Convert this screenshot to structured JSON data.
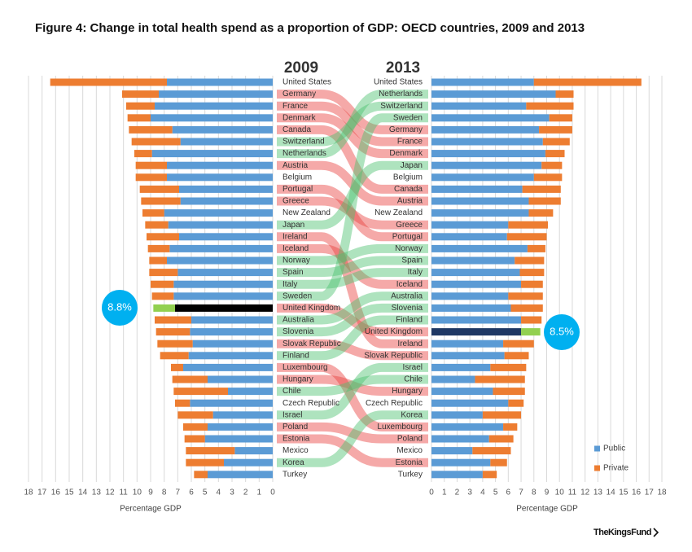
{
  "title": "Figure 4: Change in total health spend as a proportion of GDP: OECD countries, 2009 and 2013",
  "footer": "TheKingsFund",
  "chart_data": [
    {
      "type": "bar",
      "orientation": "horizontal",
      "stacked": true,
      "title": "2009",
      "xlabel": "Percentage GDP",
      "categories": [
        "United States",
        "Germany",
        "France",
        "Denmark",
        "Canada",
        "Switzerland",
        "Netherlands",
        "Austria",
        "Belgium",
        "Portugal",
        "Greece",
        "New Zealand",
        "Japan",
        "Ireland",
        "Iceland",
        "Norway",
        "Spain",
        "Italy",
        "Sweden",
        "United Kingdom",
        "Australia",
        "Slovenia",
        "Slovak Republic",
        "Finland",
        "Luxembourg",
        "Hungary",
        "Chile",
        "Czech Republic",
        "Israel",
        "Poland",
        "Estonia",
        "Mexico",
        "Korea",
        "Turkey"
      ],
      "series": [
        {
          "name": "Public",
          "color": "#5b9bd5",
          "values": [
            7.8,
            8.4,
            8.7,
            9.0,
            7.4,
            6.8,
            8.9,
            7.8,
            7.8,
            6.9,
            6.8,
            8.0,
            7.7,
            6.9,
            7.6,
            7.8,
            7.0,
            7.3,
            7.3,
            7.2,
            6.0,
            6.1,
            5.9,
            6.2,
            6.6,
            4.8,
            3.3,
            6.1,
            4.4,
            4.8,
            5.0,
            2.8,
            3.6,
            4.8
          ]
        },
        {
          "name": "Private",
          "color": "#ed7d31",
          "values": [
            8.6,
            2.7,
            2.1,
            1.7,
            3.2,
            3.6,
            1.3,
            2.3,
            2.3,
            2.9,
            2.9,
            1.6,
            1.7,
            2.4,
            1.6,
            1.3,
            2.1,
            1.7,
            1.6,
            1.6,
            2.7,
            2.5,
            2.6,
            2.1,
            0.9,
            2.6,
            4.0,
            1.1,
            2.6,
            1.8,
            1.5,
            3.6,
            2.8,
            1.0
          ]
        }
      ],
      "highlight": {
        "category": "United Kingdom",
        "colors": [
          "#000000",
          "#92d050"
        ]
      },
      "annotation": "8.8%",
      "xlim": [
        18,
        0
      ],
      "xticks": [
        0,
        1,
        2,
        3,
        4,
        5,
        6,
        7,
        8,
        9,
        10,
        11,
        12,
        13,
        14,
        15,
        16,
        17,
        18
      ],
      "grid": true
    },
    {
      "type": "bar",
      "orientation": "horizontal",
      "stacked": true,
      "title": "2013",
      "xlabel": "Percentage GDP",
      "categories": [
        "United States",
        "Netherlands",
        "Switzerland",
        "Sweden",
        "Germany",
        "France",
        "Denmark",
        "Japan",
        "Belgium",
        "Canada",
        "Austria",
        "New Zealand",
        "Greece",
        "Portugal",
        "Norway",
        "Spain",
        "Italy",
        "Iceland",
        "Australia",
        "Slovenia",
        "Finland",
        "United Kingdom",
        "Ireland",
        "Slovak Republic",
        "Israel",
        "Chile",
        "Hungary",
        "Czech Republic",
        "Korea",
        "Luxembourg",
        "Poland",
        "Mexico",
        "Estonia",
        "Turkey"
      ],
      "series": [
        {
          "name": "Public",
          "color": "#5b9bd5",
          "values": [
            8.0,
            9.7,
            7.4,
            9.2,
            8.4,
            8.7,
            8.9,
            8.6,
            8.0,
            7.1,
            7.6,
            7.6,
            6.0,
            5.9,
            7.5,
            6.5,
            6.9,
            7.0,
            6.0,
            6.2,
            7.0,
            7.0,
            5.6,
            5.7,
            4.6,
            3.4,
            4.8,
            6.0,
            4.0,
            5.6,
            4.5,
            3.2,
            4.6,
            4.0
          ]
        },
        {
          "name": "Private",
          "color": "#ed7d31",
          "values": [
            8.4,
            1.4,
            3.7,
            1.8,
            2.6,
            2.1,
            1.5,
            1.6,
            2.2,
            3.0,
            2.5,
            1.9,
            3.1,
            3.1,
            1.4,
            2.3,
            1.9,
            1.7,
            2.7,
            2.5,
            1.6,
            1.5,
            2.4,
            1.9,
            2.8,
            3.9,
            2.5,
            1.2,
            3.0,
            1.1,
            1.9,
            3.0,
            1.3,
            1.1
          ]
        }
      ],
      "highlight": {
        "category": "United Kingdom",
        "colors": [
          "#1f3864",
          "#92d050"
        ]
      },
      "annotation": "8.5%",
      "legend": "lower right",
      "xlim": [
        0,
        18
      ],
      "xticks": [
        0,
        1,
        2,
        3,
        4,
        5,
        6,
        7,
        8,
        9,
        10,
        11,
        12,
        13,
        14,
        15,
        16,
        17,
        18
      ],
      "grid": true
    }
  ]
}
